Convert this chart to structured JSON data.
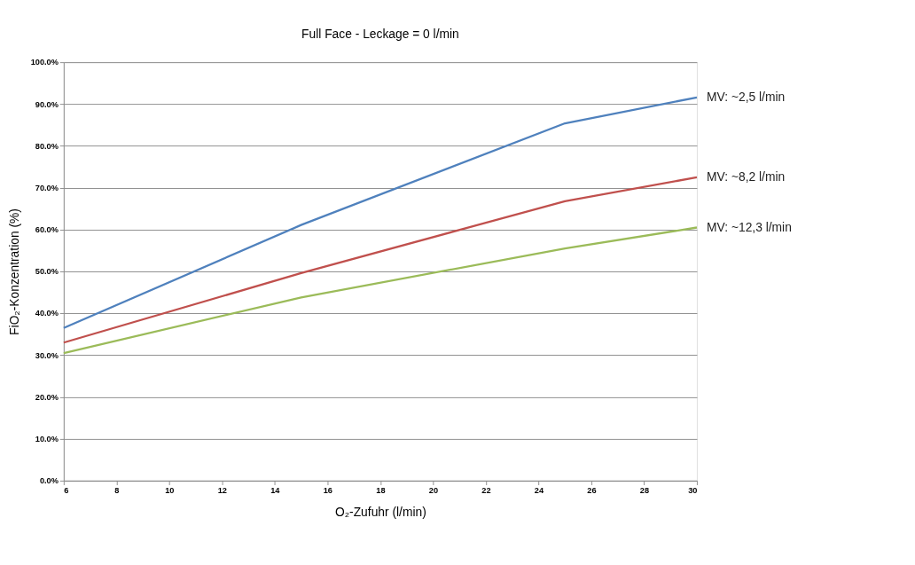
{
  "chart_data": {
    "type": "line",
    "title": "Full Face - Leckage = 0 l/min",
    "xlabel": "O₂-Zufuhr (l/min)",
    "ylabel": "FiO₂-Konzentration (%)",
    "x": [
      6,
      15,
      25,
      30
    ],
    "series": [
      {
        "name": "MV: ~2,5 l/min",
        "color": "#4f81bd",
        "values": [
          36.5,
          61.1,
          85.4,
          91.6
        ]
      },
      {
        "name": "MV: ~8,2 l/min",
        "color": "#c0504d",
        "values": [
          33.0,
          49.6,
          66.8,
          72.5
        ]
      },
      {
        "name": "MV: ~12,3 l/min",
        "color": "#9bbb59",
        "values": [
          30.5,
          43.8,
          55.5,
          60.5
        ]
      }
    ],
    "xlim": [
      6,
      30
    ],
    "xticks": [
      6,
      8,
      10,
      12,
      14,
      16,
      18,
      20,
      22,
      24,
      26,
      28,
      30
    ],
    "ylim": [
      0,
      100
    ],
    "yticks": [
      {
        "value": 0,
        "label": "0.0%"
      },
      {
        "value": 10,
        "label": "10.0%"
      },
      {
        "value": 20,
        "label": "20.0%"
      },
      {
        "value": 30,
        "label": "30.0%"
      },
      {
        "value": 40,
        "label": "40.0%"
      },
      {
        "value": 50,
        "label": "50.0%"
      },
      {
        "value": 60,
        "label": "60.0%"
      },
      {
        "value": 70,
        "label": "70.0%"
      },
      {
        "value": 80,
        "label": "80.0%"
      },
      {
        "value": 90,
        "label": "90.0%"
      },
      {
        "value": 100,
        "label": "100.0%"
      }
    ],
    "grid": "y",
    "legend": false,
    "marker": "none",
    "line_style": "solid"
  }
}
